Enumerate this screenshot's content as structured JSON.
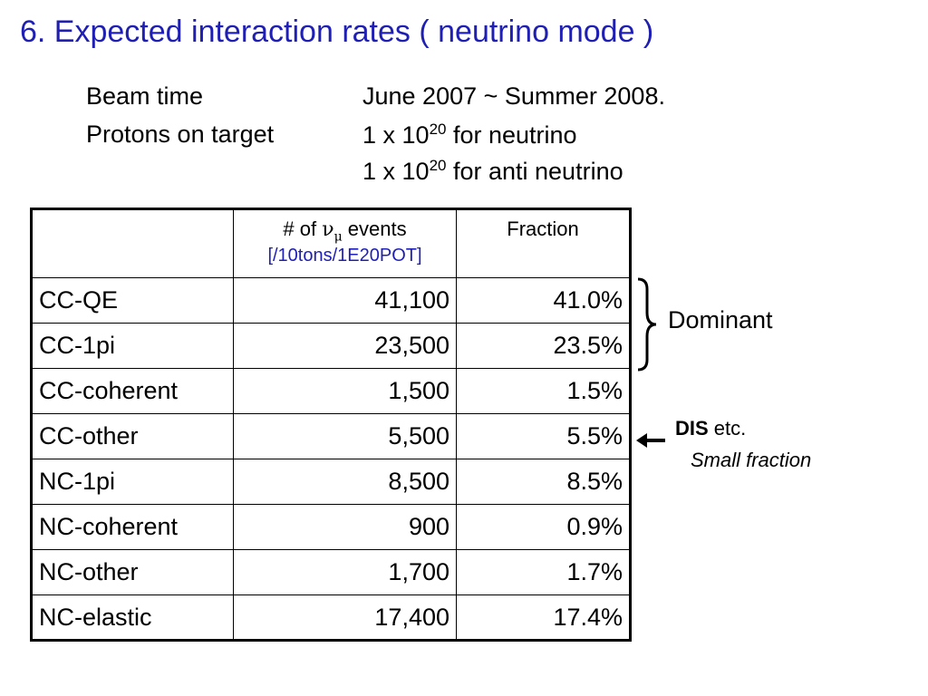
{
  "title": "6. Expected interaction rates ( neutrino mode )",
  "beam": {
    "label": "Beam time",
    "value": "June 2007 ~ Summer 2008."
  },
  "pot": {
    "label": "Protons on target",
    "line1_prefix": "1 x 10",
    "line1_exp": "20",
    "line1_suffix": " for neutrino",
    "line2_prefix": "1 x 10",
    "line2_exp": "20",
    "line2_suffix": " for anti neutrino"
  },
  "table": {
    "header_events_prefix": "# of ",
    "header_events_symbol": "ν",
    "header_events_sub": "μ",
    "header_events_suffix": " events",
    "header_unit": "[/10tons/1E20POT]",
    "header_fraction": "Fraction",
    "rows": [
      {
        "mode": "CC-QE",
        "events": "41,100",
        "fraction": "41.0%"
      },
      {
        "mode": "CC-1pi",
        "events": "23,500",
        "fraction": "23.5%"
      },
      {
        "mode": "CC-coherent",
        "events": "1,500",
        "fraction": "1.5%"
      },
      {
        "mode": "CC-other",
        "events": "5,500",
        "fraction": "5.5%"
      },
      {
        "mode": "NC-1pi",
        "events": "8,500",
        "fraction": "8.5%"
      },
      {
        "mode": "NC-coherent",
        "events": "900",
        "fraction": "0.9%"
      },
      {
        "mode": "NC-other",
        "events": "1,700",
        "fraction": "1.7%"
      },
      {
        "mode": "NC-elastic",
        "events": "17,400",
        "fraction": "17.4%"
      }
    ]
  },
  "annotations": {
    "dominant": "Dominant",
    "dis_bold": "DIS",
    "dis_rest": " etc.",
    "small_fraction": "Small fraction"
  },
  "colors": {
    "title": "#1f1fb4",
    "unit_text": "#1f1fb4"
  }
}
